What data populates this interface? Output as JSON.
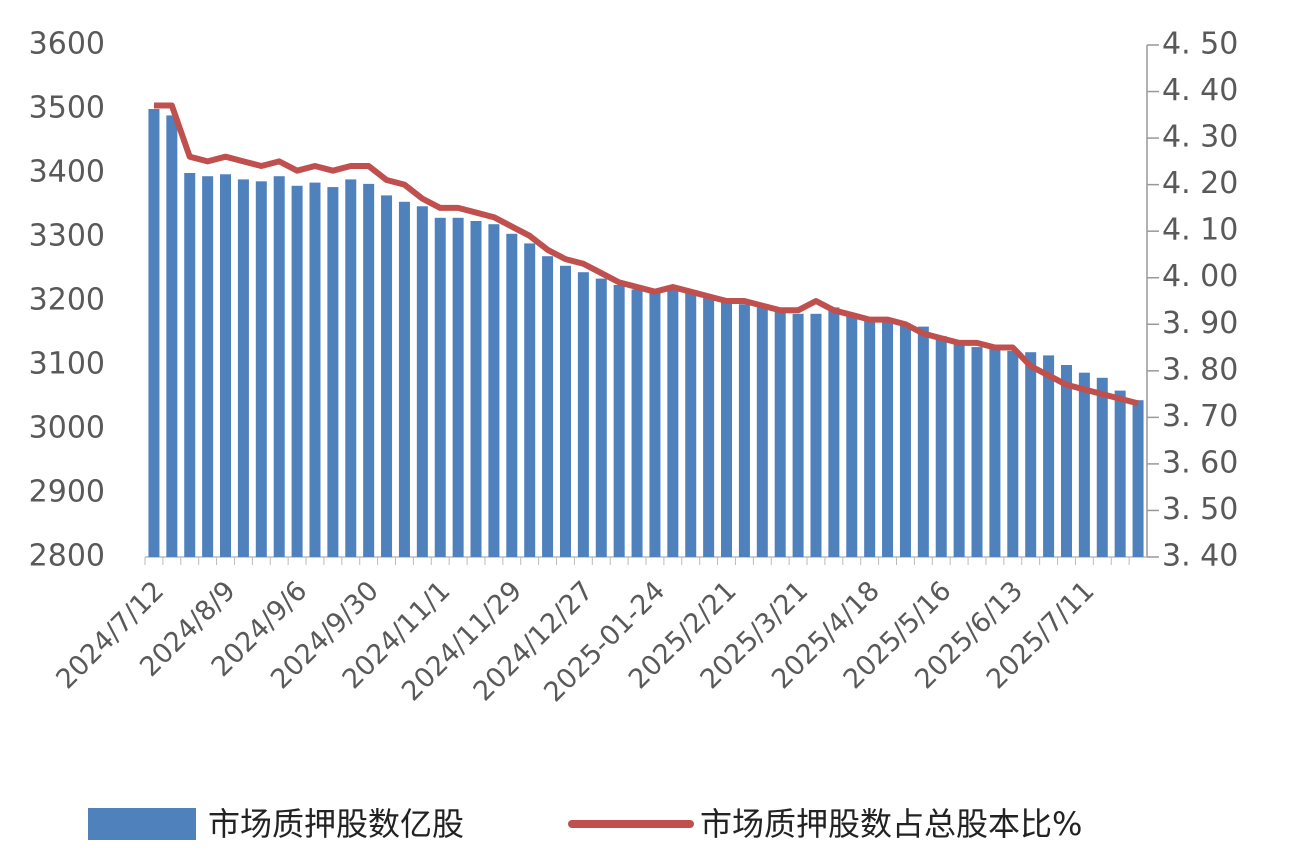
{
  "chart_data": {
    "type": "bar-line",
    "categories": [
      "2024/7/12",
      null,
      null,
      null,
      "2024/8/9",
      null,
      null,
      null,
      "2024/9/6",
      null,
      null,
      null,
      "2024/9/30",
      null,
      null,
      null,
      "2024/11/1",
      null,
      null,
      null,
      "2024/11/29",
      null,
      null,
      null,
      "2024/12/27",
      null,
      null,
      null,
      "2025-01-24",
      null,
      null,
      null,
      "2025/2/21",
      null,
      null,
      null,
      "2025/3/21",
      null,
      null,
      null,
      "2025/4/18",
      null,
      null,
      null,
      "2025/5/16",
      null,
      null,
      null,
      "2025/6/13",
      null,
      null,
      null,
      "2025/7/11",
      null,
      null,
      null
    ],
    "series": [
      {
        "name": "市场质押股数亿股",
        "type": "bar",
        "color": "#4f81bd",
        "values": [
          3500,
          3490,
          3400,
          3395,
          3398,
          3390,
          3387,
          3395,
          3380,
          3385,
          3378,
          3390,
          3383,
          3365,
          3355,
          3348,
          3330,
          3330,
          3325,
          3320,
          3305,
          3290,
          3270,
          3255,
          3245,
          3235,
          3225,
          3218,
          3215,
          3220,
          3215,
          3205,
          3200,
          3195,
          3195,
          3185,
          3180,
          3180,
          3190,
          3180,
          3175,
          3168,
          3165,
          3160,
          3145,
          3135,
          3128,
          3125,
          3122,
          3120,
          3115,
          3100,
          3088,
          3080,
          3060,
          3045
        ]
      },
      {
        "name": "市场质押股数占总股本比%",
        "type": "line",
        "axis": "y2",
        "color": "#c0504d",
        "values": [
          4.37,
          4.37,
          4.26,
          4.25,
          4.26,
          4.25,
          4.24,
          4.25,
          4.23,
          4.24,
          4.23,
          4.24,
          4.24,
          4.21,
          4.2,
          4.17,
          4.15,
          4.15,
          4.14,
          4.13,
          4.11,
          4.09,
          4.06,
          4.04,
          4.03,
          4.01,
          3.99,
          3.98,
          3.97,
          3.98,
          3.97,
          3.96,
          3.95,
          3.95,
          3.94,
          3.93,
          3.93,
          3.95,
          3.93,
          3.92,
          3.91,
          3.91,
          3.9,
          3.88,
          3.87,
          3.86,
          3.86,
          3.85,
          3.85,
          3.81,
          3.79,
          3.77,
          3.76,
          3.75,
          3.74,
          3.73
        ]
      }
    ],
    "ylim": [
      2800,
      3600
    ],
    "yticks": [
      2800,
      2900,
      3000,
      3100,
      3200,
      3300,
      3400,
      3500,
      3600
    ],
    "y2lim": [
      3.4,
      4.5
    ],
    "y2ticks": [
      {
        "value": 3.4,
        "label": "3. 40"
      },
      {
        "value": 3.5,
        "label": "3. 50"
      },
      {
        "value": 3.6,
        "label": "3. 60"
      },
      {
        "value": 3.7,
        "label": "3. 70"
      },
      {
        "value": 3.8,
        "label": "3. 80"
      },
      {
        "value": 3.9,
        "label": "3. 90"
      },
      {
        "value": 4.0,
        "label": "4. 00"
      },
      {
        "value": 4.1,
        "label": "4. 10"
      },
      {
        "value": 4.2,
        "label": "4. 20"
      },
      {
        "value": 4.3,
        "label": "4. 30"
      },
      {
        "value": 4.4,
        "label": "4. 40"
      },
      {
        "value": 4.5,
        "label": "4. 50"
      }
    ],
    "legend": "bottom"
  }
}
